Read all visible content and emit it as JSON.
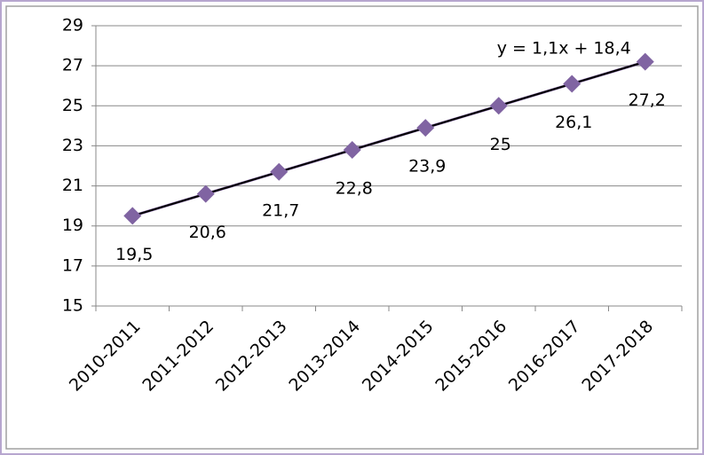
{
  "chart_data": {
    "type": "line",
    "categories": [
      "2010-2011",
      "2011-2012",
      "2012-2013",
      "2013-2014",
      "2014-2015",
      "2015-2016",
      "2016-2017",
      "2017-2018"
    ],
    "values": [
      19.5,
      20.6,
      21.7,
      22.8,
      23.9,
      25,
      26.1,
      27.2
    ],
    "value_labels": [
      "19,5",
      "20,6",
      "21,7",
      "22,8",
      "23,9",
      "25",
      "26,1",
      "27,2"
    ],
    "color": "#8064a2",
    "ylim": [
      15,
      29
    ],
    "yticks": [
      15,
      17,
      19,
      21,
      23,
      25,
      27,
      29
    ],
    "grid": true,
    "trendline": {
      "slope": 1.1,
      "intercept": 18.4,
      "label": "y = 1,1x + 18,4",
      "color": "#000000"
    }
  }
}
